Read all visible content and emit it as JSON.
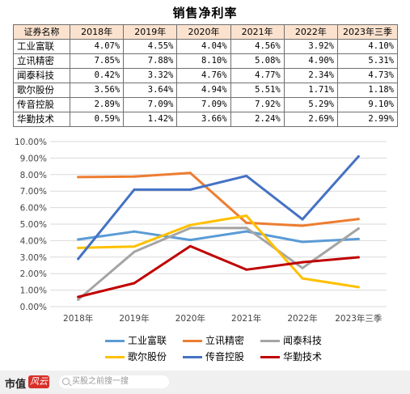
{
  "title": "销售净利率",
  "table": {
    "header": [
      "证券名称",
      "2018年",
      "2019年",
      "2020年",
      "2021年",
      "2022年",
      "2023年三季"
    ],
    "rows": [
      [
        "工业富联",
        "4.07%",
        "4.55%",
        "4.04%",
        "4.56%",
        "3.92%",
        "4.10%"
      ],
      [
        "立讯精密",
        "7.85%",
        "7.88%",
        "8.10%",
        "5.08%",
        "4.90%",
        "5.31%"
      ],
      [
        "闻泰科技",
        "0.42%",
        "3.32%",
        "4.76%",
        "4.77%",
        "2.34%",
        "4.73%"
      ],
      [
        "歌尔股份",
        "3.56%",
        "3.64%",
        "4.94%",
        "5.51%",
        "1.71%",
        "1.18%"
      ],
      [
        "传音控股",
        "2.89%",
        "7.09%",
        "7.09%",
        "7.92%",
        "5.29%",
        "9.10%"
      ],
      [
        "华勤技术",
        "0.59%",
        "1.42%",
        "3.66%",
        "2.24%",
        "2.69%",
        "2.99%"
      ]
    ]
  },
  "chart_data": {
    "type": "line",
    "title": "",
    "xlabel": "",
    "ylabel": "",
    "categories": [
      "2018年",
      "2019年",
      "2020年",
      "2021年",
      "2022年",
      "2023年三季"
    ],
    "ylim": [
      0,
      10
    ],
    "yticks": [
      "0.00%",
      "1.00%",
      "2.00%",
      "3.00%",
      "4.00%",
      "5.00%",
      "6.00%",
      "7.00%",
      "8.00%",
      "9.00%",
      "10.00%"
    ],
    "grid": true,
    "legend_position": "bottom",
    "series": [
      {
        "name": "工业富联",
        "color": "#5b9bd5",
        "values": [
          4.07,
          4.55,
          4.04,
          4.56,
          3.92,
          4.1
        ]
      },
      {
        "name": "立讯精密",
        "color": "#ed7d31",
        "values": [
          7.85,
          7.88,
          8.1,
          5.08,
          4.9,
          5.31
        ]
      },
      {
        "name": "闻泰科技",
        "color": "#a5a5a5",
        "values": [
          0.42,
          3.32,
          4.76,
          4.77,
          2.34,
          4.73
        ]
      },
      {
        "name": "歌尔股份",
        "color": "#ffc000",
        "values": [
          3.56,
          3.64,
          4.94,
          5.51,
          1.71,
          1.18
        ]
      },
      {
        "name": "传音控股",
        "color": "#4472c4",
        "values": [
          2.89,
          7.09,
          7.09,
          7.92,
          5.29,
          9.1
        ]
      },
      {
        "name": "华勤技术",
        "color": "#c00000",
        "values": [
          0.59,
          1.42,
          3.66,
          2.24,
          2.69,
          2.99
        ]
      }
    ]
  },
  "footer": {
    "logo_text": "市值",
    "logo_mark": "风云",
    "search_placeholder": "买股之前搜一搜"
  }
}
